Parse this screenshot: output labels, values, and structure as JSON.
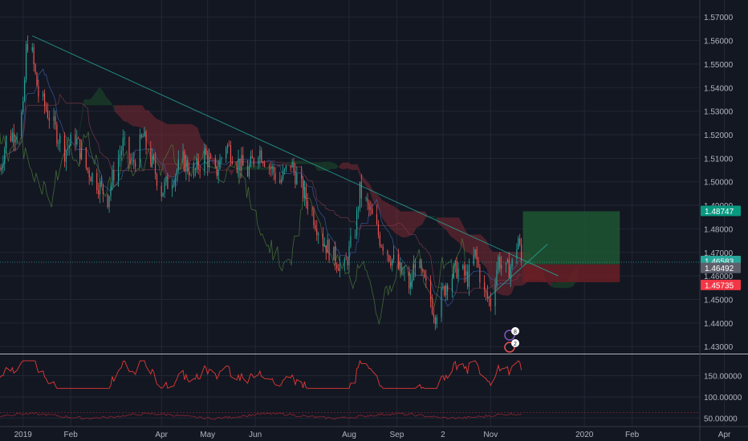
{
  "colors": {
    "background": "#131722",
    "grid": "#232735",
    "up": "#26a69a",
    "down": "#ef5350",
    "axis_text": "#b2b5be",
    "trendline": "#26a69a",
    "cloud_bear": "#7d2a33",
    "cloud_bull": "#1e4d2b",
    "profit_zone": "#1e5631",
    "loss_zone": "#6b1e24",
    "rsi_line": "#e53935"
  },
  "price_axis": {
    "labels": [
      "1.57000",
      "1.56000",
      "1.55000",
      "1.54000",
      "1.53000",
      "1.52000",
      "1.51000",
      "1.50000",
      "1.49000",
      "1.48000",
      "1.47000",
      "1.46000",
      "1.45000",
      "1.44000",
      "1.43000"
    ]
  },
  "price_tags": [
    {
      "name": "target-price-tag",
      "value": "1.48747",
      "color": "#089981"
    },
    {
      "name": "last-price-tag",
      "value": "1.46583",
      "color": "#26a69a"
    },
    {
      "name": "entry-price-tag",
      "value": "1.46492",
      "color": "#5d606b"
    },
    {
      "name": "stop-price-tag",
      "value": "1.45735",
      "color": "#f23645"
    }
  ],
  "oscillator_axis": {
    "labels": [
      "150.00000",
      "100.00000",
      "50.00000"
    ]
  },
  "time_axis": {
    "labels": [
      "2019",
      "Feb",
      "Apr",
      "May",
      "Jun",
      "Aug",
      "Sep",
      "2",
      "Nov",
      "2020",
      "Feb",
      "Apr"
    ]
  },
  "event_markers": [
    {
      "name": "news-marker-icon",
      "count": "8"
    },
    {
      "name": "earnings-marker-icon",
      "count": "2"
    }
  ],
  "chart_data": {
    "type": "candlestick",
    "ylim": [
      1.427,
      1.5745
    ],
    "x_range": [
      "2018-12-17",
      "2020-04-20"
    ],
    "grid": true,
    "close_path": [
      [
        "2018-12-17",
        1.505
      ],
      [
        "2018-12-21",
        1.518
      ],
      [
        "2018-12-28",
        1.522
      ],
      [
        "2019-01-01",
        1.53
      ],
      [
        "2019-01-03",
        1.556
      ],
      [
        "2019-01-05",
        1.563
      ],
      [
        "2019-01-08",
        1.549
      ],
      [
        "2019-01-11",
        1.537
      ],
      [
        "2019-01-16",
        1.531
      ],
      [
        "2019-01-22",
        1.522
      ],
      [
        "2019-01-28",
        1.513
      ],
      [
        "2019-02-04",
        1.519
      ],
      [
        "2019-02-11",
        1.506
      ],
      [
        "2019-02-18",
        1.5
      ],
      [
        "2019-02-25",
        1.493
      ],
      [
        "2019-03-01",
        1.504
      ],
      [
        "2019-03-07",
        1.516
      ],
      [
        "2019-03-13",
        1.507
      ],
      [
        "2019-03-20",
        1.519
      ],
      [
        "2019-03-27",
        1.506
      ],
      [
        "2019-04-01",
        1.496
      ],
      [
        "2019-04-08",
        1.502
      ],
      [
        "2019-04-15",
        1.509
      ],
      [
        "2019-04-22",
        1.503
      ],
      [
        "2019-04-29",
        1.512
      ],
      [
        "2019-05-06",
        1.503
      ],
      [
        "2019-05-13",
        1.516
      ],
      [
        "2019-05-20",
        1.509
      ],
      [
        "2019-05-27",
        1.504
      ],
      [
        "2019-06-03",
        1.514
      ],
      [
        "2019-06-10",
        1.507
      ],
      [
        "2019-06-17",
        1.5
      ],
      [
        "2019-06-24",
        1.508
      ],
      [
        "2019-07-01",
        1.497
      ],
      [
        "2019-07-08",
        1.487
      ],
      [
        "2019-07-15",
        1.475
      ],
      [
        "2019-07-22",
        1.468
      ],
      [
        "2019-07-29",
        1.463
      ],
      [
        "2019-08-05",
        1.48
      ],
      [
        "2019-08-08",
        1.496
      ],
      [
        "2019-08-14",
        1.488
      ],
      [
        "2019-08-21",
        1.476
      ],
      [
        "2019-08-28",
        1.468
      ],
      [
        "2019-09-04",
        1.461
      ],
      [
        "2019-09-10",
        1.455
      ],
      [
        "2019-09-13",
        1.467
      ],
      [
        "2019-09-20",
        1.455
      ],
      [
        "2019-09-26",
        1.444
      ],
      [
        "2019-10-03",
        1.457
      ],
      [
        "2019-10-10",
        1.463
      ],
      [
        "2019-10-17",
        1.459
      ],
      [
        "2019-10-22",
        1.469
      ],
      [
        "2019-10-28",
        1.452
      ],
      [
        "2019-11-01",
        1.449
      ],
      [
        "2019-11-06",
        1.467
      ],
      [
        "2019-11-11",
        1.462
      ],
      [
        "2019-11-15",
        1.465
      ],
      [
        "2019-11-19",
        1.476
      ],
      [
        "2019-11-21",
        1.466
      ]
    ],
    "trendline": [
      [
        "2019-01-07",
        1.562
      ],
      [
        "2019-12-15",
        1.46
      ]
    ],
    "position": {
      "entry_date": "2019-11-22",
      "exit_date": "2020-01-24",
      "entry": 1.46492,
      "target": 1.48747,
      "stop": 1.45735,
      "last": 1.46583
    },
    "oscillator": {
      "ylim": [
        30,
        200
      ],
      "values_near": [
        150,
        100,
        50
      ]
    }
  }
}
